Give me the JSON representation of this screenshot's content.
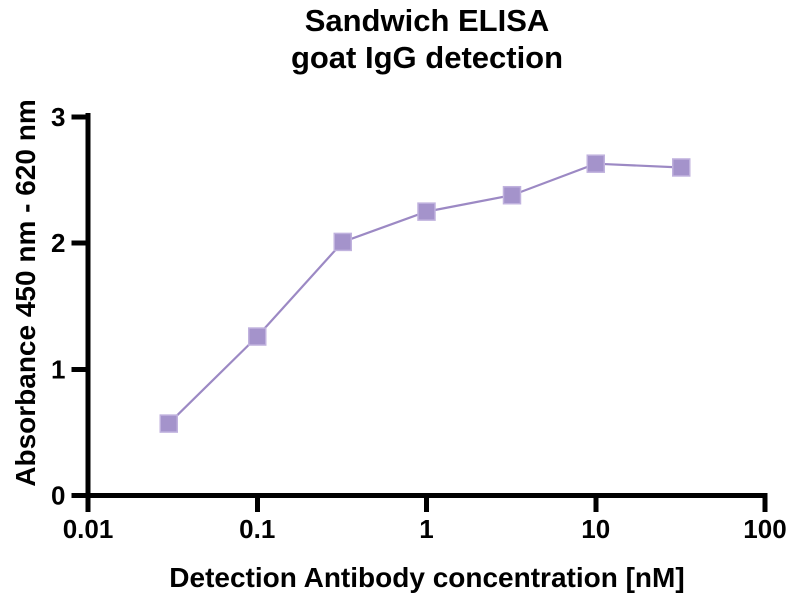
{
  "title": {
    "line1": "Sandwich ELISA",
    "line2": "goat IgG detection"
  },
  "chart_data": {
    "type": "line",
    "title": "Sandwich ELISA — goat IgG detection",
    "xlabel": "Detection Antibody concentration [nM]",
    "ylabel": "Absorbance 450 nm - 620 nm",
    "x_scale": "log10",
    "xlim": [
      0.01,
      100
    ],
    "ylim": [
      0,
      3
    ],
    "grid": false,
    "legend": "none",
    "x_ticks": [
      {
        "value": 0.01,
        "label": "0.01"
      },
      {
        "value": 0.1,
        "label": "0.1"
      },
      {
        "value": 1,
        "label": "1"
      },
      {
        "value": 10,
        "label": "10"
      },
      {
        "value": 100,
        "label": "100"
      }
    ],
    "y_ticks": [
      {
        "value": 0,
        "label": "0"
      },
      {
        "value": 1,
        "label": "1"
      },
      {
        "value": 2,
        "label": "2"
      },
      {
        "value": 3,
        "label": "3"
      }
    ],
    "series": [
      {
        "name": "goat IgG detection",
        "marker": "square",
        "x": [
          0.03,
          0.1,
          0.32,
          1,
          3.2,
          10,
          32
        ],
        "y": [
          0.57,
          1.26,
          2.01,
          2.25,
          2.38,
          2.63,
          2.6
        ]
      }
    ]
  },
  "colors": {
    "axis": "#000000",
    "text": "#000000",
    "line": "#9c89c4",
    "marker_fill": "#a493cb",
    "marker_border": "#c0b2de",
    "background": "#ffffff"
  }
}
